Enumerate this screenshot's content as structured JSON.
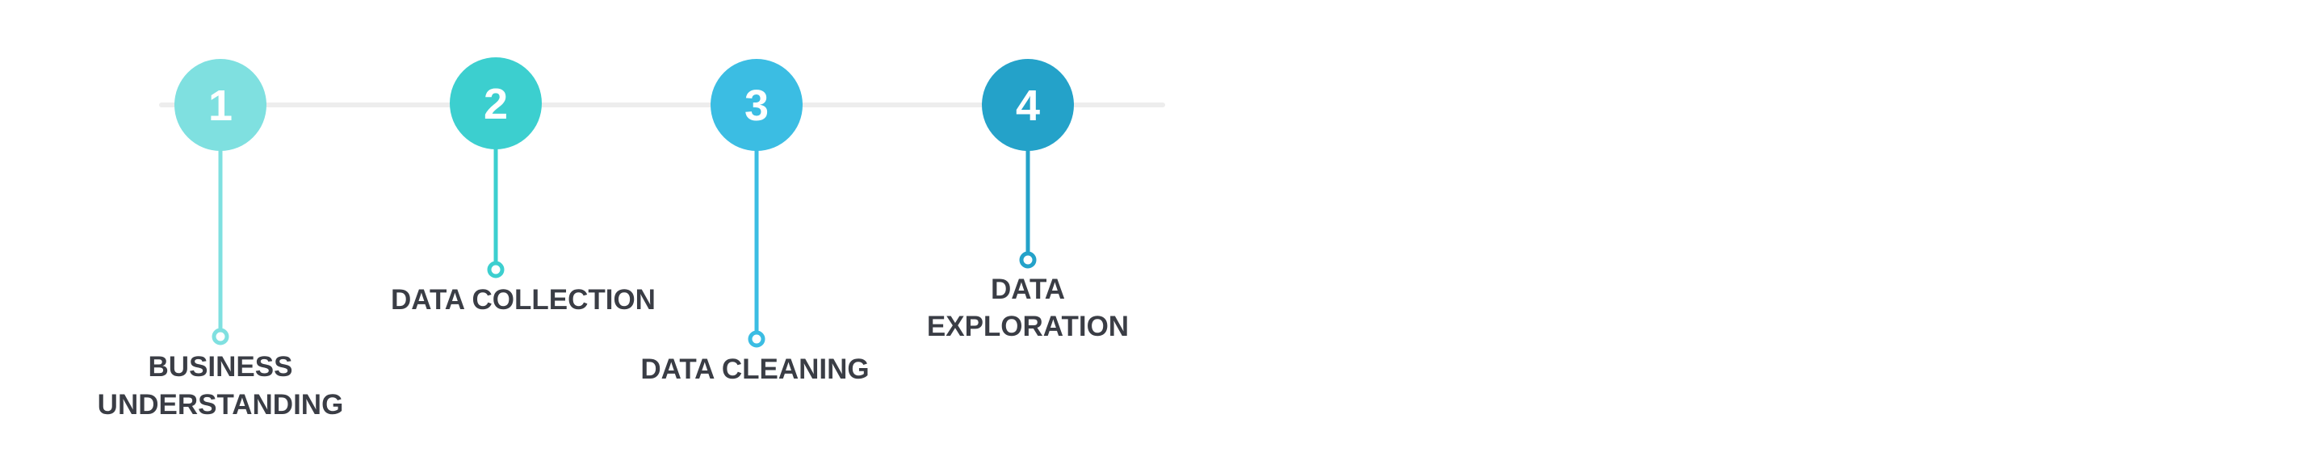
{
  "steps": [
    {
      "number": "1",
      "label_lines": [
        "BUSINESS",
        "UNDERSTANDING"
      ],
      "color": "#7fe0e0"
    },
    {
      "number": "2",
      "label_lines": [
        "DATA COLLECTION"
      ],
      "color": "#3ccfcf"
    },
    {
      "number": "3",
      "label_lines": [
        "DATA CLEANING"
      ],
      "color": "#3bbde3"
    },
    {
      "number": "4",
      "label_lines": [
        "DATA",
        "EXPLORATION"
      ],
      "color": "#24a2c9"
    }
  ],
  "connector_color": "#ededed"
}
